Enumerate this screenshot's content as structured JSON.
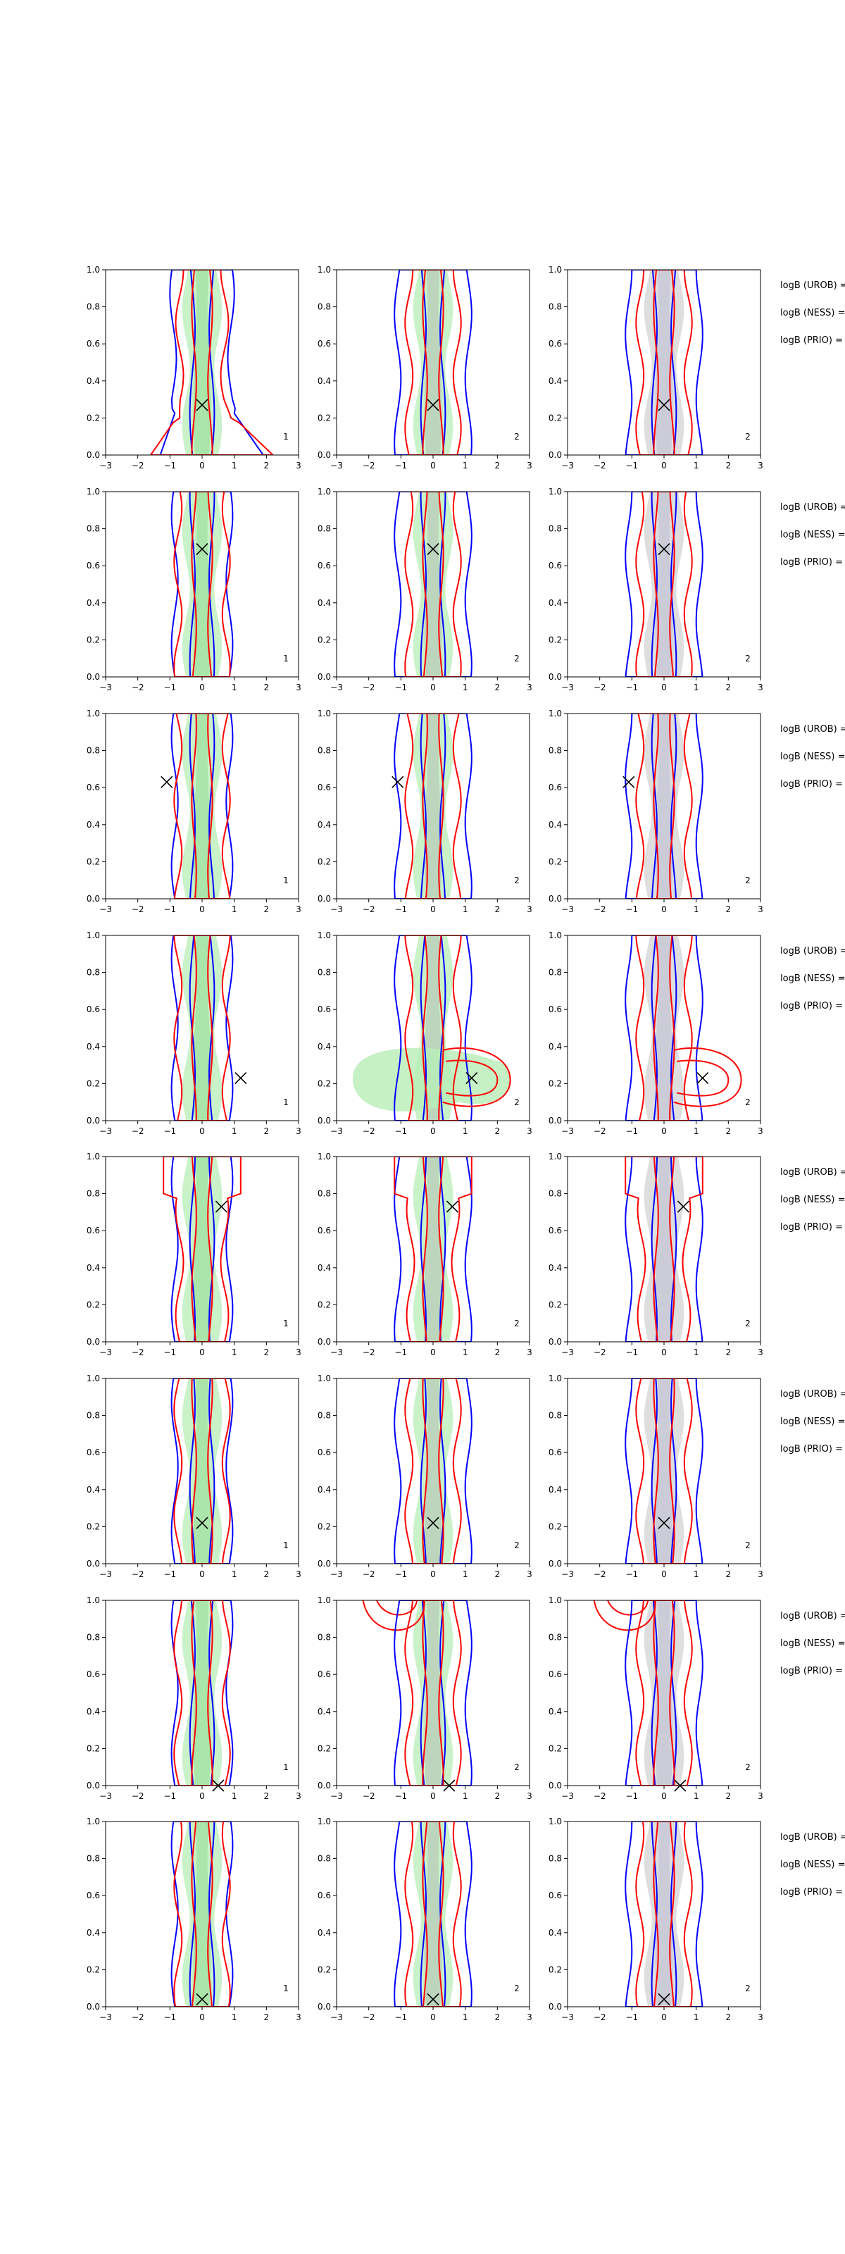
{
  "chart_data": {
    "type": "contour",
    "layout": {
      "rows": 8,
      "cols": 3
    },
    "axes": {
      "xlim": [
        -3,
        3
      ],
      "ylim": [
        0.0,
        1.0
      ],
      "xticks": [
        "−3",
        "−2",
        "−1",
        "0",
        "1",
        "2",
        "3"
      ],
      "yticks": [
        "0.0",
        "0.2",
        "0.4",
        "0.6",
        "0.8",
        "1.0"
      ],
      "grid": false
    },
    "colors": {
      "blue": "#0000ff",
      "red": "#ff0000",
      "green_fill": "#b7eeb7",
      "gray_fill": "#d3d3d3",
      "marker": "#000000"
    },
    "panel_labels": [
      "1",
      "2",
      "2"
    ],
    "side_labels": [
      "logB (UROB) =",
      "logB (NESS) =",
      "logB (PRIO) ="
    ],
    "rows": [
      {
        "marker": [
          0.0,
          0.27
        ],
        "shape": "skew"
      },
      {
        "marker": [
          0.0,
          0.69
        ],
        "shape": "normal"
      },
      {
        "marker": [
          -1.1,
          0.63
        ],
        "shape": "normal"
      },
      {
        "marker": [
          1.2,
          0.23
        ],
        "shape": "blob"
      },
      {
        "marker": [
          0.6,
          0.73
        ],
        "shape": "topwide"
      },
      {
        "marker": [
          0.0,
          0.22
        ],
        "shape": "normal"
      },
      {
        "marker": [
          0.5,
          0.0
        ],
        "shape": "topleft"
      },
      {
        "marker": [
          0.0,
          0.04
        ],
        "shape": "normal"
      }
    ]
  }
}
